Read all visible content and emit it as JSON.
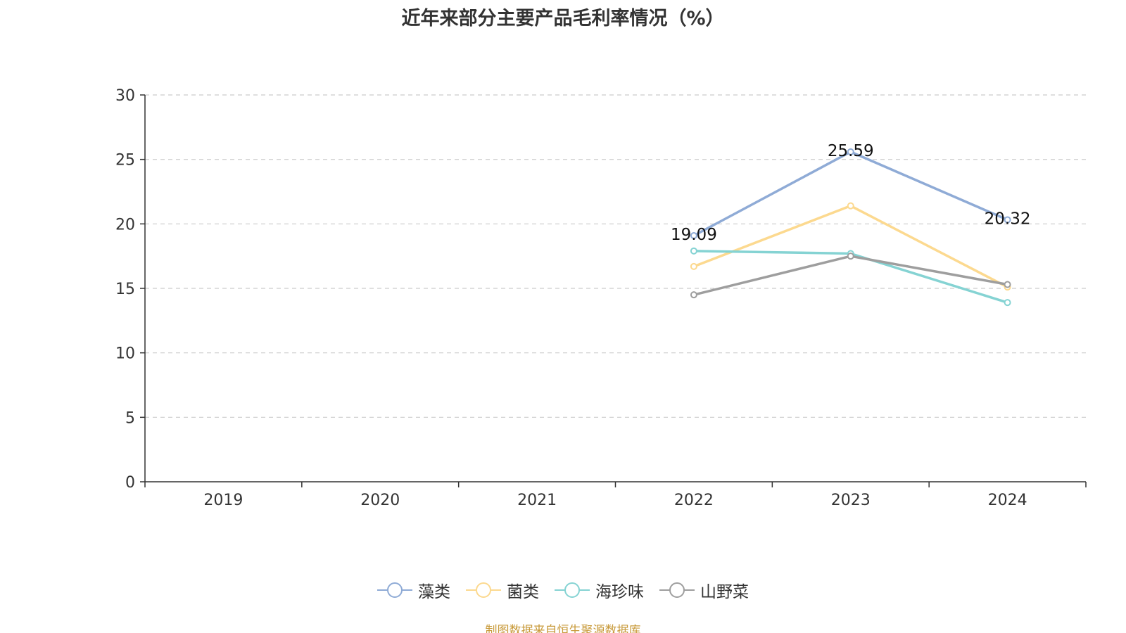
{
  "title": "近年来部分主要产品毛利率情况（%）",
  "source_note": "制图数据来自恒生聚源数据库",
  "chart_data": {
    "type": "line",
    "title": "近年来部分主要产品毛利率情况（%）",
    "xlabel": "",
    "ylabel": "",
    "categories": [
      "2019",
      "2020",
      "2021",
      "2022",
      "2023",
      "2024"
    ],
    "ylim": [
      0,
      30
    ],
    "yticks": [
      0,
      5,
      10,
      15,
      20,
      25,
      30
    ],
    "grid": true,
    "grid_style": "dashed",
    "legend_position": "bottom",
    "series": [
      {
        "name": "藻类",
        "color": "#8fabd6",
        "values": [
          null,
          null,
          null,
          19.09,
          25.59,
          20.32
        ],
        "show_labels": true,
        "labels": [
          null,
          null,
          null,
          "19.09",
          "25.59",
          "20.32"
        ]
      },
      {
        "name": "菌类",
        "color": "#fcd98f",
        "values": [
          null,
          null,
          null,
          16.7,
          21.4,
          15.1
        ],
        "show_labels": false
      },
      {
        "name": "海珍味",
        "color": "#85d3d3",
        "values": [
          null,
          null,
          null,
          17.9,
          17.7,
          13.9
        ],
        "show_labels": false
      },
      {
        "name": "山野菜",
        "color": "#9e9e9e",
        "values": [
          null,
          null,
          null,
          14.5,
          17.5,
          15.3
        ],
        "show_labels": false
      }
    ]
  }
}
